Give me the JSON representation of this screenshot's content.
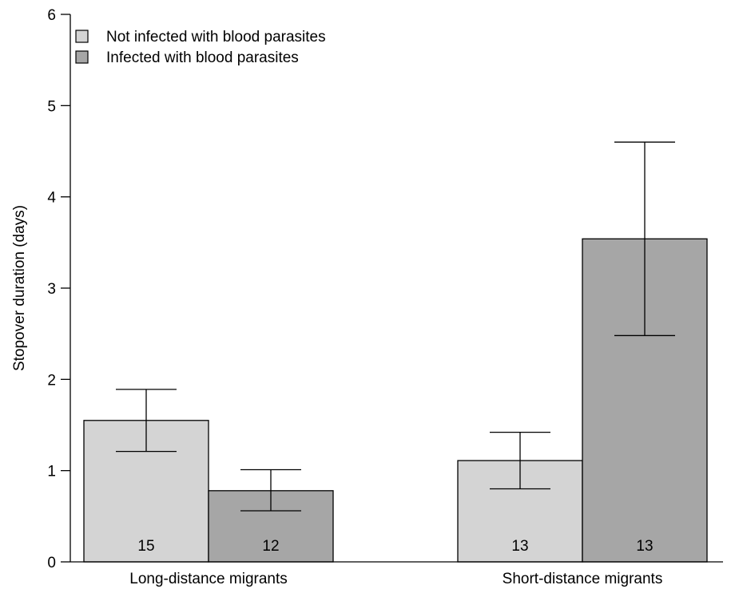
{
  "chart_data": {
    "type": "bar",
    "ylabel": "Stopover duration (days)",
    "xlabel": "",
    "ylim": [
      0,
      6
    ],
    "yticks": [
      0,
      1,
      2,
      3,
      4,
      5,
      6
    ],
    "categories": [
      "Long-distance migrants",
      "Short-distance migrants"
    ],
    "legend_position": "top-left",
    "grid": false,
    "series": [
      {
        "name": "Not infected with blood parasites",
        "color": "#d4d4d4",
        "values": [
          1.55,
          1.11
        ],
        "error_low": [
          1.21,
          0.8
        ],
        "error_high": [
          1.89,
          1.42
        ],
        "n": [
          "15",
          "13"
        ]
      },
      {
        "name": "Infected with blood parasites",
        "color": "#a6a6a6",
        "values": [
          0.78,
          3.54
        ],
        "error_low": [
          0.56,
          2.48
        ],
        "error_high": [
          1.01,
          4.6
        ],
        "n": [
          "12",
          "13"
        ]
      }
    ]
  }
}
